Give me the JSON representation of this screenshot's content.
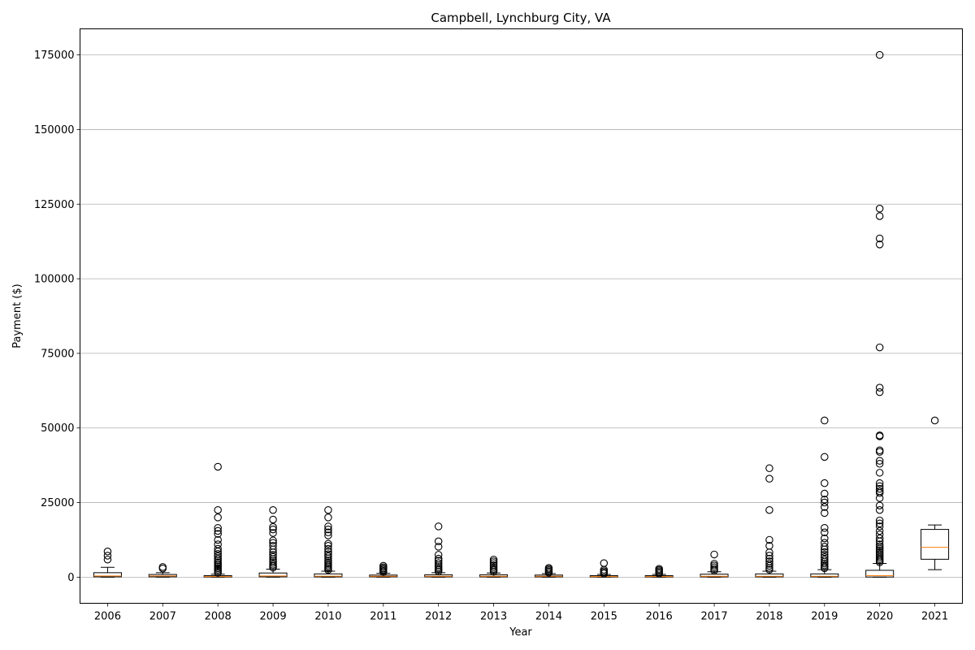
{
  "chart_data": {
    "type": "boxplot",
    "title": "Campbell, Lynchburg City, VA",
    "xlabel": "Year",
    "ylabel": "Payment ($)",
    "ylim": [
      -8750,
      183750
    ],
    "yticks": [
      0,
      25000,
      50000,
      75000,
      100000,
      125000,
      150000,
      175000
    ],
    "grid": "y-major",
    "colors": {
      "box": "#000000",
      "median": "#ff7f0e",
      "grid": "#b0b0b0",
      "flier": "#000000"
    },
    "categories": [
      "2006",
      "2007",
      "2008",
      "2009",
      "2010",
      "2011",
      "2012",
      "2013",
      "2014",
      "2015",
      "2016",
      "2017",
      "2018",
      "2019",
      "2020",
      "2021"
    ],
    "boxes": [
      {
        "q1": 100,
        "median": 400,
        "q3": 1500,
        "whislo": 0,
        "whishi": 3300,
        "fliers": [
          5900,
          7200,
          8600
        ]
      },
      {
        "q1": 100,
        "median": 400,
        "q3": 900,
        "whislo": 0,
        "whishi": 1500,
        "fliers": [
          2900,
          3400
        ]
      },
      {
        "q1": 50,
        "median": 200,
        "q3": 500,
        "whislo": 0,
        "whishi": 1000,
        "fliers": [
          1500,
          2000,
          2500,
          3000,
          3500,
          4000,
          4500,
          5000,
          5600,
          6200,
          7000,
          7800,
          8600,
          9500,
          11000,
          12500,
          14500,
          15500,
          16500,
          20000,
          22500,
          37000
        ]
      },
      {
        "q1": 100,
        "median": 400,
        "q3": 1400,
        "whislo": 0,
        "whishi": 2700,
        "fliers": [
          3200,
          3700,
          4200,
          4800,
          5400,
          6000,
          6800,
          7500,
          8300,
          9300,
          10500,
          11500,
          12300,
          14800,
          16000,
          16800,
          19300,
          22500
        ]
      },
      {
        "q1": 80,
        "median": 350,
        "q3": 1100,
        "whislo": 0,
        "whishi": 2000,
        "fliers": [
          2400,
          2900,
          3400,
          3900,
          4500,
          5000,
          5600,
          6300,
          7000,
          7700,
          8500,
          9500,
          10500,
          11200,
          14000,
          15000,
          16000,
          17000,
          20000,
          22500
        ]
      },
      {
        "q1": 100,
        "median": 300,
        "q3": 700,
        "whislo": 0,
        "whishi": 1300,
        "fliers": [
          1700,
          2100,
          2500,
          2900,
          3300,
          3800
        ]
      },
      {
        "q1": 80,
        "median": 300,
        "q3": 800,
        "whislo": 0,
        "whishi": 1500,
        "fliers": [
          1900,
          2400,
          2900,
          3400,
          4000,
          4700,
          5500,
          6200,
          7500,
          10200,
          12000,
          17000
        ]
      },
      {
        "q1": 80,
        "median": 300,
        "q3": 800,
        "whislo": 0,
        "whishi": 1400,
        "fliers": [
          1800,
          2300,
          2800,
          3400,
          4000,
          4700,
          5300,
          5900
        ]
      },
      {
        "q1": 80,
        "median": 300,
        "q3": 700,
        "whislo": 0,
        "whishi": 1200,
        "fliers": [
          1500,
          1900,
          2300,
          2700,
          3100
        ]
      },
      {
        "q1": 50,
        "median": 200,
        "q3": 500,
        "whislo": 0,
        "whishi": 900,
        "fliers": [
          1200,
          1600,
          2000,
          2500,
          4700
        ]
      },
      {
        "q1": 50,
        "median": 200,
        "q3": 500,
        "whislo": 0,
        "whishi": 900,
        "fliers": [
          1200,
          1600,
          2000,
          2400,
          2800
        ]
      },
      {
        "q1": 80,
        "median": 300,
        "q3": 1000,
        "whislo": 0,
        "whishi": 1800,
        "fliers": [
          2200,
          2700,
          3300,
          3900,
          4500,
          7600
        ]
      },
      {
        "q1": 80,
        "median": 300,
        "q3": 1100,
        "whislo": 0,
        "whishi": 2000,
        "fliers": [
          2500,
          3100,
          3800,
          4500,
          5300,
          6200,
          7200,
          8300,
          10500,
          12500,
          22500,
          33000,
          36500
        ]
      },
      {
        "q1": 80,
        "median": 300,
        "q3": 1100,
        "whislo": 0,
        "whishi": 2500,
        "fliers": [
          3000,
          3500,
          4000,
          4600,
          5200,
          5900,
          6700,
          7500,
          8400,
          9300,
          10200,
          11500,
          13000,
          15000,
          16500,
          21500,
          23500,
          25000,
          26000,
          28000,
          31500,
          40300,
          52500
        ]
      },
      {
        "q1": 50,
        "median": 500,
        "q3": 2300,
        "whislo": 0,
        "whishi": 4600,
        "fliers": [
          5000,
          5500,
          6000,
          6600,
          7200,
          7800,
          8400,
          9000,
          9600,
          10300,
          11000,
          12000,
          13000,
          14300,
          15500,
          17000,
          18000,
          19000,
          22500,
          24000,
          26500,
          28200,
          28800,
          29600,
          30500,
          31500,
          35000,
          38000,
          39000,
          42000,
          42500,
          47200,
          47500,
          62000,
          63500,
          77000,
          111500,
          113500,
          121000,
          123500,
          175000
        ]
      },
      {
        "q1": 6000,
        "median": 10000,
        "q3": 16000,
        "whislo": 2500,
        "whishi": 17500,
        "fliers": [
          52500
        ]
      }
    ]
  }
}
